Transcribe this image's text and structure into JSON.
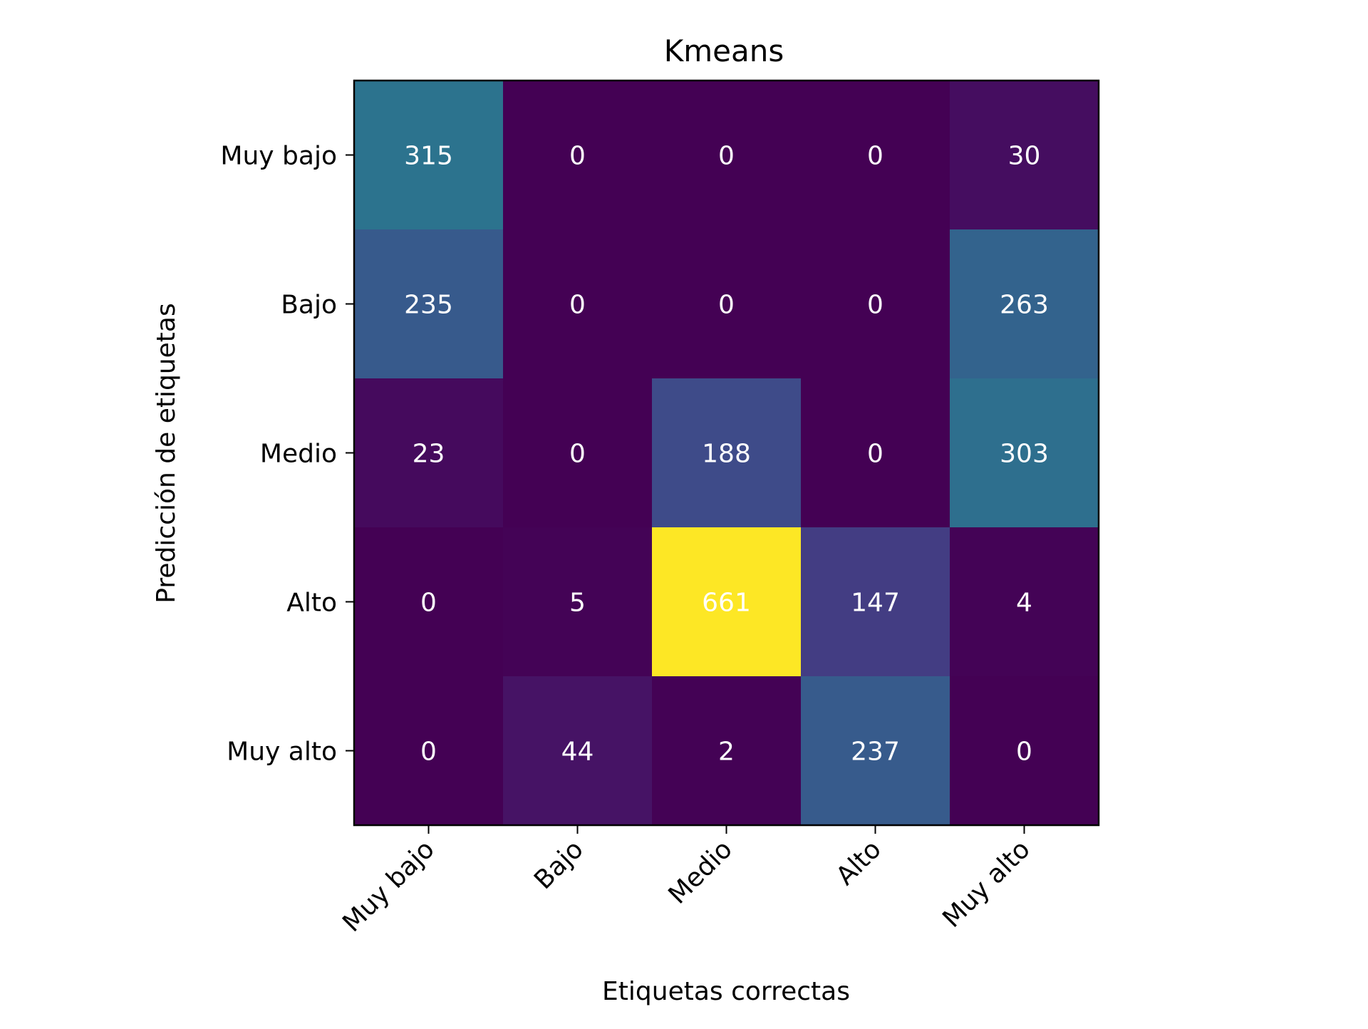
{
  "chart_data": {
    "type": "heatmap",
    "title": "Kmeans",
    "xlabel": "Etiquetas correctas",
    "ylabel": "Predicción de etiquetas",
    "x_categories": [
      "Muy bajo",
      "Bajo",
      "Medio",
      "Alto",
      "Muy alto"
    ],
    "y_categories": [
      "Muy bajo",
      "Bajo",
      "Medio",
      "Alto",
      "Muy alto"
    ],
    "values": [
      [
        315,
        0,
        0,
        0,
        30
      ],
      [
        235,
        0,
        0,
        0,
        263
      ],
      [
        23,
        0,
        188,
        0,
        303
      ],
      [
        0,
        5,
        661,
        147,
        4
      ],
      [
        0,
        44,
        2,
        237,
        0
      ]
    ],
    "value_range": [
      0,
      661
    ],
    "colormap": "viridis",
    "annotation_color": "#ffffff",
    "text_color": "#000000",
    "frame_color": "#000000",
    "x_tick_rotation_deg": 45,
    "grid": false,
    "legend": "none"
  }
}
